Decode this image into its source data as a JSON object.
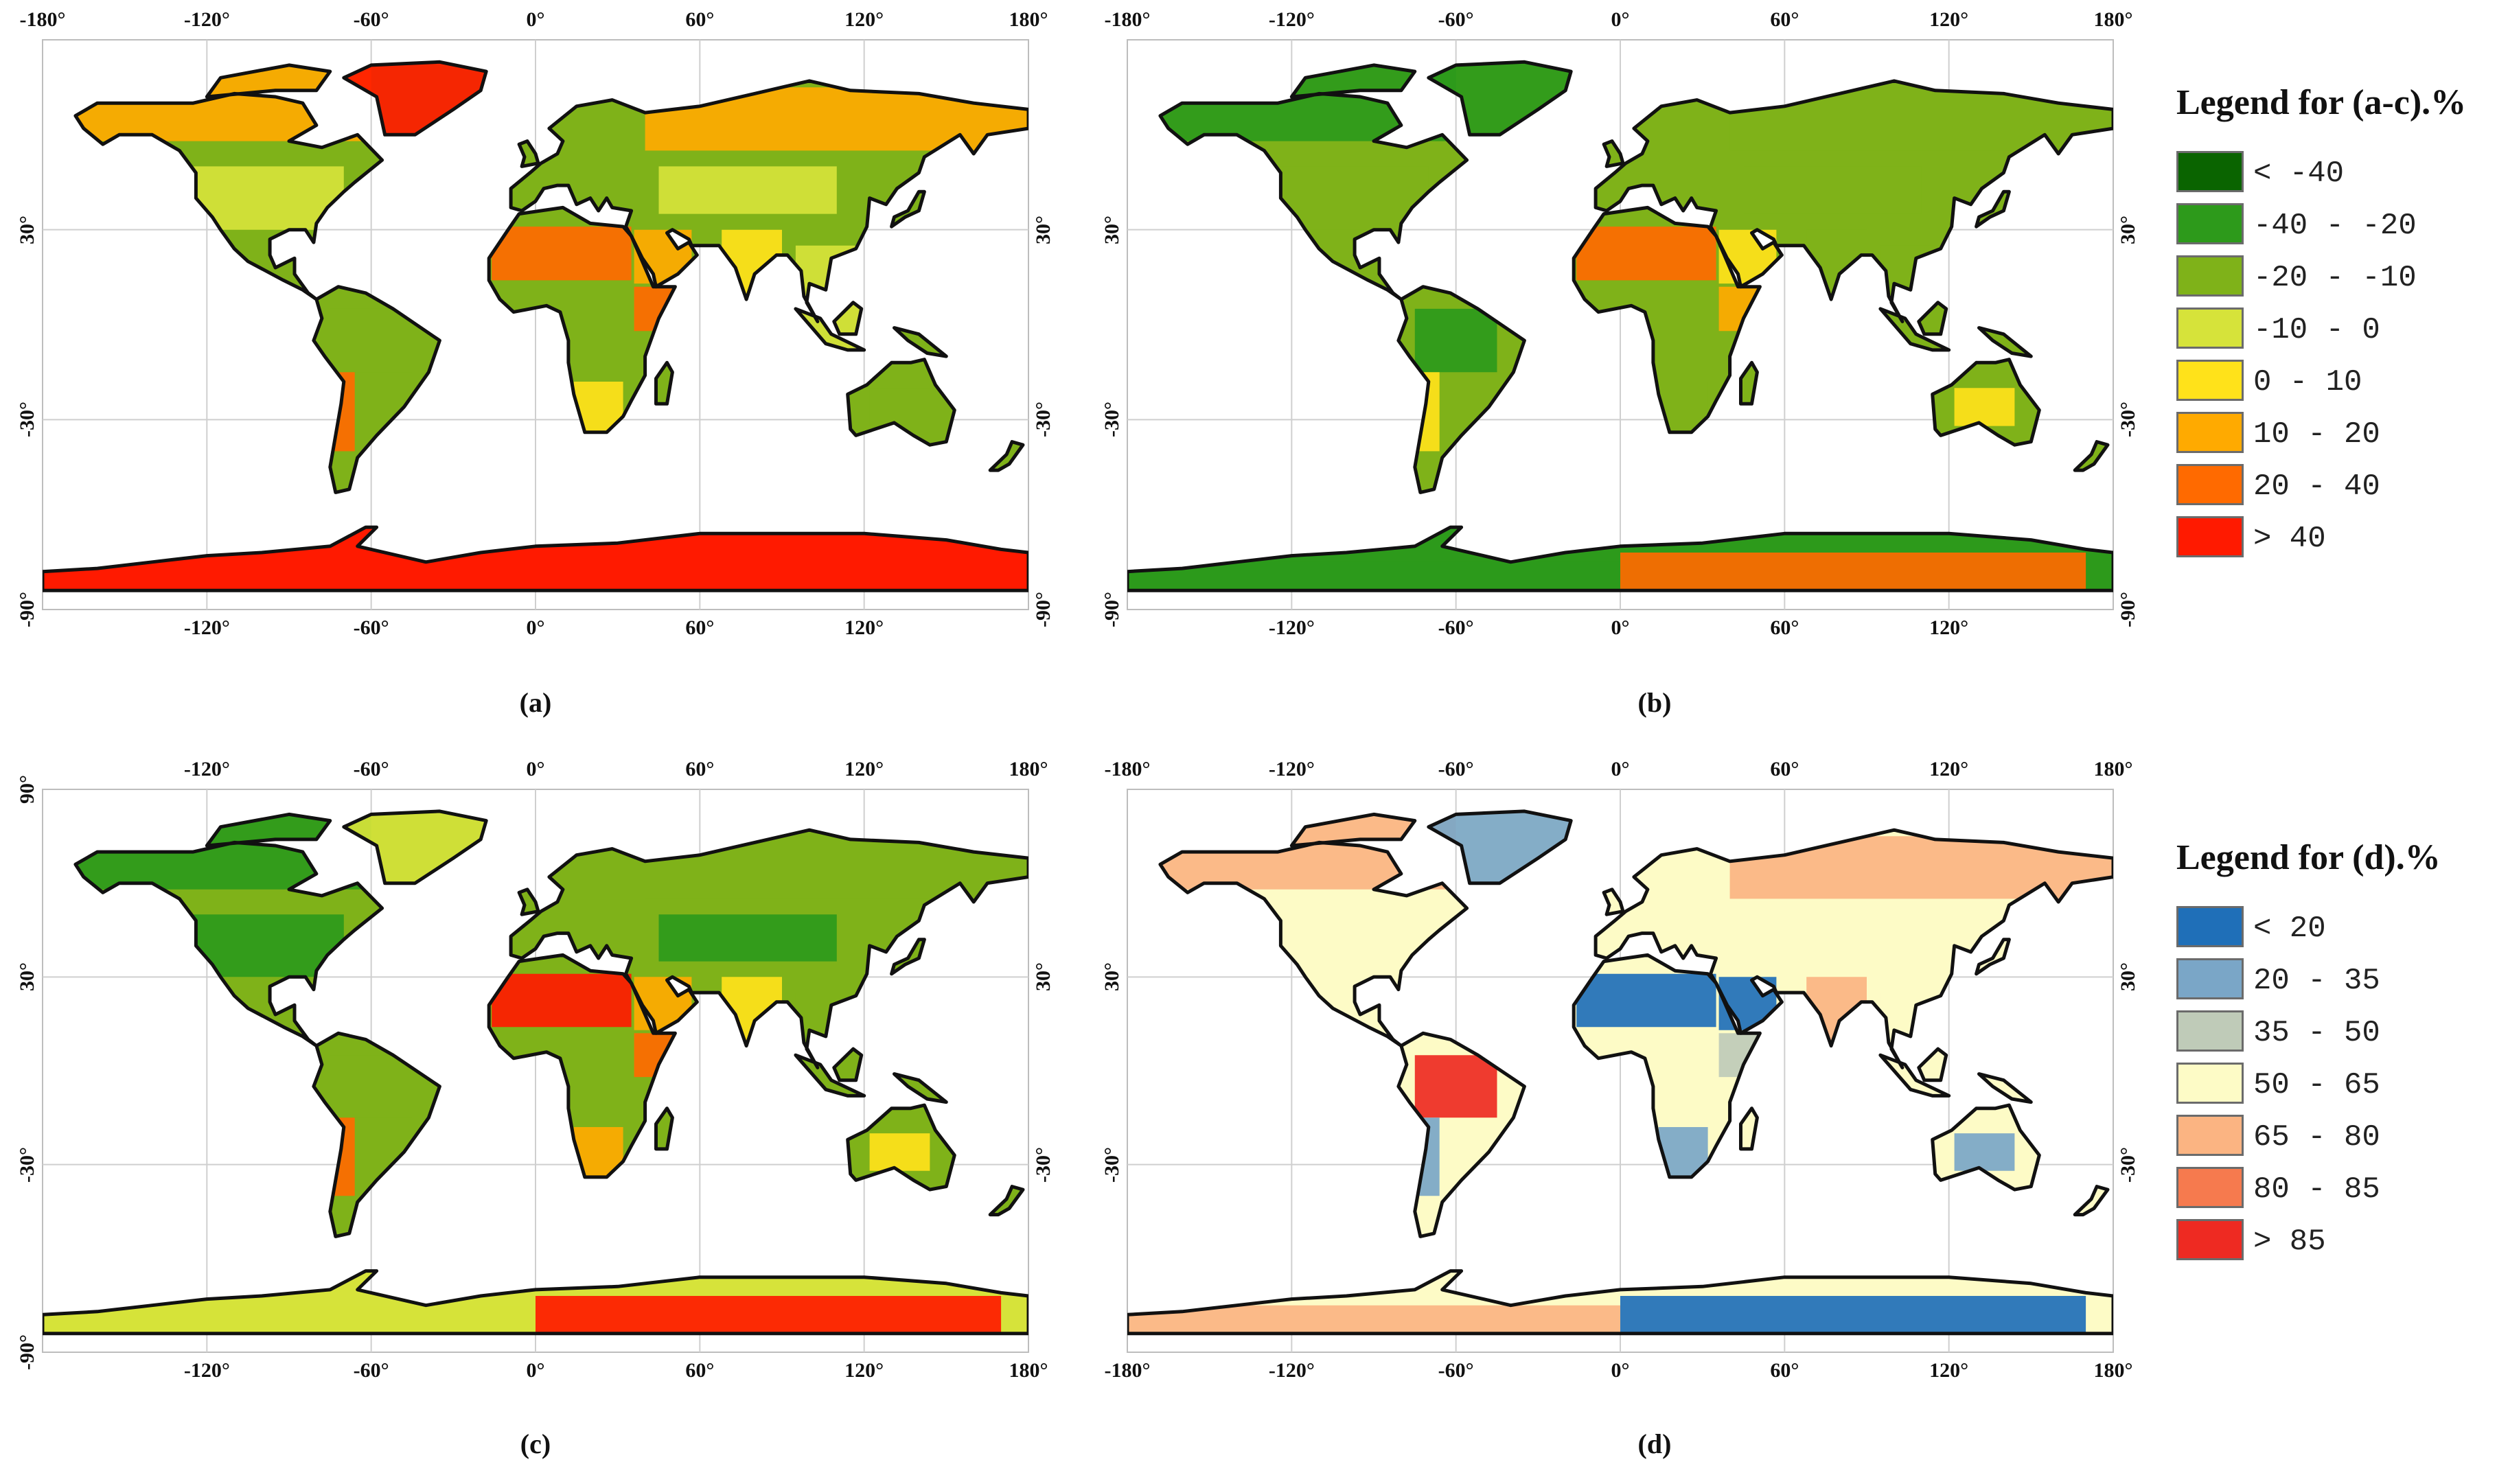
{
  "panels": {
    "a": {
      "label": "(a)",
      "top_ticks": [
        "-180°",
        "-120°",
        "-60°",
        "0°",
        "60°",
        "120°",
        "180°"
      ],
      "bottom_ticks": [
        "-120°",
        "-60°",
        "0°",
        "60°",
        "120°"
      ],
      "left_ticks": [
        "30°",
        "-30°",
        "-90°"
      ],
      "right_ticks": [
        "30°",
        "-30°",
        "-90°"
      ]
    },
    "b": {
      "label": "(b)",
      "top_ticks": [
        "-180°",
        "-120°",
        "-60°",
        "0°",
        "60°",
        "120°",
        "180°"
      ],
      "bottom_ticks": [
        "-120°",
        "-60°",
        "0°",
        "60°",
        "120°"
      ],
      "left_ticks": [
        "30°",
        "-30°",
        "-90°"
      ],
      "right_ticks": [
        "30°",
        "-30°",
        "-90°"
      ]
    },
    "c": {
      "label": "(c)",
      "top_ticks": [
        "-120°",
        "-60°",
        "0°",
        "60°",
        "120°",
        "180°"
      ],
      "bottom_ticks": [
        "-120°",
        "-60°",
        "0°",
        "60°",
        "120°",
        "180°"
      ],
      "left_ticks": [
        "90°",
        "30°",
        "-30°",
        "-90°"
      ],
      "right_ticks": [
        "30°",
        "-30°"
      ]
    },
    "d": {
      "label": "(d)",
      "top_ticks": [
        "-180°",
        "-120°",
        "-60°",
        "0°",
        "60°",
        "120°",
        "180°"
      ],
      "bottom_ticks": [
        "-180°",
        "-120°",
        "-60°",
        "0°",
        "60°",
        "120°",
        "180°"
      ],
      "left_ticks": [
        "30°",
        "-30°"
      ],
      "right_ticks": [
        "30°",
        "-30°"
      ]
    }
  },
  "legend_ac": {
    "title": "Legend for (a-c).%",
    "items": [
      {
        "label": "< -40",
        "color": "#0a6400"
      },
      {
        "label": "-40 - -20",
        "color": "#2d9a1b"
      },
      {
        "label": "-20 - -10",
        "color": "#7fb219"
      },
      {
        "label": "-10 - 0",
        "color": "#d6e33a"
      },
      {
        "label": "0 - 10",
        "color": "#ffe21a"
      },
      {
        "label": "10 - 20",
        "color": "#ffaa00"
      },
      {
        "label": "20 - 40",
        "color": "#ff6a00"
      },
      {
        "label": "> 40",
        "color": "#ff1a00"
      }
    ]
  },
  "legend_d": {
    "title": "Legend for (d).%",
    "items": [
      {
        "label": "< 20",
        "color": "#1f6fb8"
      },
      {
        "label": "20 - 35",
        "color": "#7aa6c7"
      },
      {
        "label": "35 - 50",
        "color": "#bfcbb8"
      },
      {
        "label": "50 - 65",
        "color": "#fdfbc6"
      },
      {
        "label": "65 - 80",
        "color": "#fbb482"
      },
      {
        "label": "80 - 85",
        "color": "#f67a4e"
      },
      {
        "label": "> 85",
        "color": "#ee2a22"
      }
    ]
  }
}
